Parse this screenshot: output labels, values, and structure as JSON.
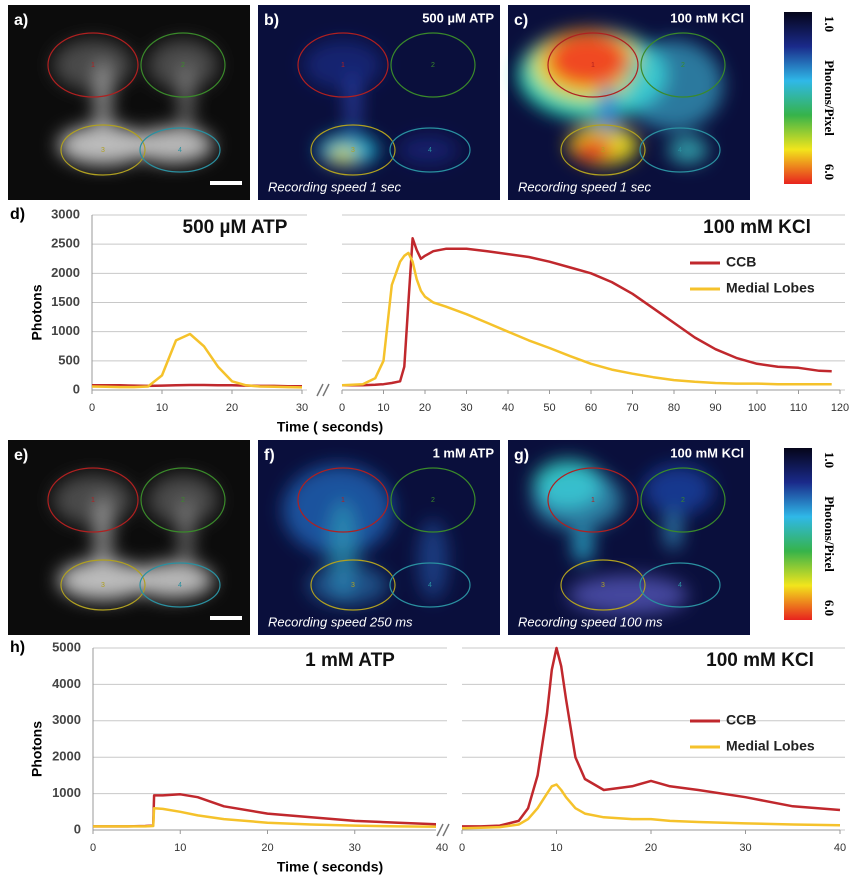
{
  "images": [
    {
      "label": "a)"
    },
    {
      "label": "b)",
      "stimulus": "500 µM ATP",
      "caption": "Recording speed 1 sec"
    },
    {
      "label": "c)",
      "stimulus": "100 mM KCl",
      "caption": "Recording speed 1 sec"
    },
    {
      "label": "e)"
    },
    {
      "label": "f)",
      "stimulus": "1 mM ATP",
      "caption": "Recording speed 250 ms"
    },
    {
      "label": "g)",
      "stimulus": "100 mM KCl",
      "caption": "Recording speed 100 ms"
    }
  ],
  "roi_labels": [
    "1",
    "2",
    "3",
    "4"
  ],
  "colorbar": {
    "label": "Photons/Pixel",
    "top": "1.0",
    "bottom": "6.0"
  },
  "chart_data": [
    {
      "type": "line",
      "panel_label": "d)",
      "title": "500 µM ATP",
      "y_label": "Photons",
      "x_label": "Time ( seconds)",
      "x": [
        0,
        2,
        4,
        6,
        8,
        10,
        12,
        14,
        16,
        18,
        20,
        22,
        24,
        26,
        28,
        30
      ],
      "series": [
        {
          "name": "CCB",
          "color": "#c0282d",
          "values": [
            80,
            80,
            80,
            75,
            70,
            75,
            80,
            85,
            85,
            80,
            80,
            75,
            70,
            70,
            65,
            65
          ]
        },
        {
          "name": "Medial Lobes",
          "color": "#f5c22b",
          "values": [
            60,
            55,
            50,
            50,
            60,
            250,
            850,
            960,
            750,
            400,
            150,
            80,
            60,
            55,
            50,
            45
          ]
        }
      ],
      "xlim": [
        0,
        30
      ],
      "xticks": [
        0,
        10,
        20,
        30
      ],
      "ylim": [
        0,
        3000
      ],
      "yticks": [
        0,
        500,
        1000,
        1500,
        2000,
        2500,
        3000
      ],
      "grid": true
    },
    {
      "type": "line",
      "title": "100 mM KCl",
      "x": [
        0,
        5,
        8,
        10,
        12,
        14,
        15,
        16,
        17,
        18,
        19,
        20,
        22,
        25,
        30,
        35,
        40,
        45,
        50,
        55,
        60,
        65,
        70,
        75,
        80,
        85,
        90,
        95,
        100,
        105,
        110,
        115,
        118
      ],
      "series": [
        {
          "name": "CCB",
          "color": "#c0282d",
          "values": [
            80,
            80,
            90,
            100,
            120,
            150,
            400,
            1500,
            2600,
            2400,
            2250,
            2300,
            2380,
            2420,
            2420,
            2380,
            2330,
            2280,
            2200,
            2100,
            2000,
            1850,
            1650,
            1400,
            1150,
            900,
            700,
            550,
            450,
            400,
            380,
            330,
            320
          ]
        },
        {
          "name": "Medial Lobes",
          "color": "#f5c22b",
          "values": [
            80,
            100,
            200,
            500,
            1800,
            2200,
            2300,
            2350,
            2200,
            1900,
            1700,
            1600,
            1500,
            1430,
            1300,
            1150,
            1000,
            850,
            720,
            580,
            450,
            350,
            280,
            220,
            170,
            140,
            120,
            110,
            110,
            100,
            100,
            100,
            100
          ]
        }
      ],
      "xlim": [
        0,
        120
      ],
      "xticks": [
        0,
        10,
        20,
        30,
        40,
        50,
        60,
        70,
        80,
        90,
        100,
        110,
        120
      ],
      "ylim": [
        0,
        3000
      ],
      "yticks": [
        0,
        500,
        1000,
        1500,
        2000,
        2500,
        3000
      ],
      "grid": true,
      "legend": "right"
    },
    {
      "type": "line",
      "panel_label": "h)",
      "title": "1 mM ATP",
      "y_label": "Photons",
      "x_label": "Time ( seconds)",
      "x": [
        0,
        2,
        4,
        6,
        6.9,
        7,
        8,
        10,
        12,
        15,
        20,
        25,
        30,
        35,
        40
      ],
      "series": [
        {
          "name": "CCB",
          "color": "#c0282d",
          "values": [
            100,
            100,
            100,
            110,
            120,
            950,
            950,
            980,
            900,
            650,
            450,
            350,
            250,
            200,
            150
          ]
        },
        {
          "name": "Medial Lobes",
          "color": "#f5c22b",
          "values": [
            100,
            100,
            100,
            100,
            110,
            600,
            580,
            500,
            400,
            300,
            200,
            150,
            120,
            100,
            90
          ]
        }
      ],
      "xlim": [
        0,
        40
      ],
      "xticks": [
        0,
        10,
        20,
        30,
        40
      ],
      "ylim": [
        0,
        5000
      ],
      "yticks": [
        0,
        1000,
        2000,
        3000,
        4000,
        5000
      ],
      "grid": true
    },
    {
      "type": "line",
      "title": "100 mM KCl",
      "x": [
        0,
        2,
        4,
        6,
        7,
        8,
        9,
        9.5,
        10,
        10.5,
        11,
        12,
        13,
        15,
        18,
        20,
        22,
        25,
        30,
        35,
        40
      ],
      "series": [
        {
          "name": "CCB",
          "color": "#c0282d",
          "values": [
            100,
            100,
            120,
            250,
            600,
            1500,
            3200,
            4400,
            5000,
            4500,
            3600,
            2000,
            1400,
            1100,
            1200,
            1350,
            1200,
            1100,
            900,
            650,
            550
          ]
        },
        {
          "name": "Medial Lobes",
          "color": "#f5c22b",
          "values": [
            50,
            60,
            80,
            150,
            300,
            600,
            1000,
            1200,
            1250,
            1100,
            900,
            600,
            450,
            350,
            300,
            300,
            250,
            220,
            180,
            150,
            130
          ]
        }
      ],
      "xlim": [
        0,
        40
      ],
      "xticks": [
        0,
        10,
        20,
        30,
        40
      ],
      "ylim": [
        0,
        5000
      ],
      "yticks": [
        0,
        1000,
        2000,
        3000,
        4000,
        5000
      ],
      "grid": true,
      "legend": "right"
    }
  ]
}
